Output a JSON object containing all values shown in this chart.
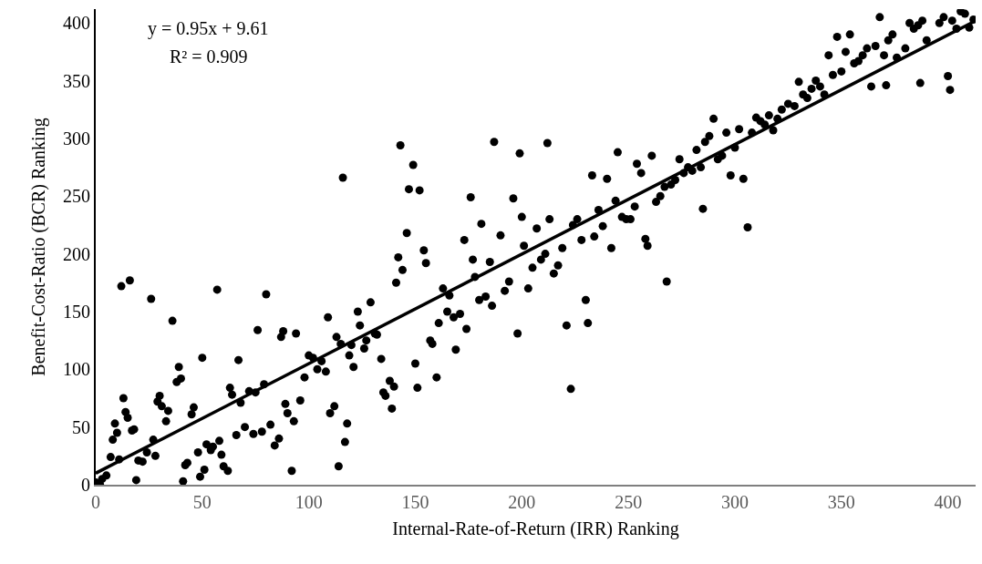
{
  "chart_data": {
    "type": "scatter",
    "xlabel": "Internal-Rate-of-Return (IRR) Ranking",
    "ylabel": "Benefit-Cost-Ratio (BCR) Ranking",
    "annotations": [
      "y = 0.95x + 9.61",
      "R² = 0.909"
    ],
    "xlim": [
      0,
      413
    ],
    "ylim": [
      0,
      412
    ],
    "xticks": [
      0,
      50,
      100,
      150,
      200,
      250,
      300,
      350,
      400
    ],
    "yticks": [
      0,
      50,
      100,
      150,
      200,
      250,
      300,
      350,
      400
    ],
    "grid": false,
    "marker": "circle",
    "series": [
      {
        "color": "#000000",
        "x": [
          0,
          2,
          3,
          5,
          7,
          8,
          9,
          10,
          11,
          12,
          13,
          14,
          15,
          16,
          17,
          18,
          19,
          20,
          22,
          24,
          26,
          27,
          28,
          29,
          30,
          31,
          33,
          34,
          36,
          38,
          39,
          40,
          41,
          42,
          43,
          45,
          46,
          48,
          49,
          50,
          51,
          52,
          54,
          55,
          57,
          58,
          59,
          60,
          62,
          63,
          64,
          66,
          67,
          68,
          70,
          72,
          74,
          75,
          76,
          78,
          79,
          80,
          82,
          84,
          86,
          87,
          88,
          89,
          90,
          92,
          93,
          94,
          96,
          98,
          100,
          102,
          104,
          106,
          108,
          109,
          110,
          112,
          113,
          114,
          115,
          116,
          117,
          118,
          119,
          120,
          121,
          123,
          124,
          126,
          127,
          129,
          131,
          132,
          134,
          135,
          136,
          138,
          139,
          140,
          141,
          142,
          143,
          144,
          146,
          147,
          149,
          150,
          151,
          152,
          154,
          155,
          157,
          158,
          160,
          161,
          163,
          165,
          166,
          168,
          169,
          171,
          173,
          174,
          176,
          177,
          178,
          180,
          181,
          183,
          185,
          186,
          187,
          190,
          192,
          194,
          196,
          198,
          199,
          200,
          201,
          203,
          205,
          207,
          209,
          211,
          212,
          213,
          215,
          217,
          219,
          221,
          223,
          224,
          226,
          228,
          230,
          231,
          233,
          234,
          236,
          238,
          240,
          242,
          244,
          245,
          247,
          249,
          251,
          253,
          254,
          256,
          258,
          259,
          261,
          263,
          265,
          267,
          268,
          270,
          272,
          274,
          276,
          278,
          280,
          282,
          284,
          285,
          286,
          288,
          290,
          292,
          294,
          296,
          298,
          300,
          302,
          304,
          306,
          308,
          310,
          312,
          314,
          316,
          318,
          320,
          322,
          325,
          328,
          330,
          332,
          334,
          336,
          338,
          340,
          342,
          344,
          346,
          348,
          350,
          352,
          354,
          356,
          358,
          360,
          362,
          364,
          366,
          368,
          370,
          371,
          372,
          374,
          376,
          380,
          382,
          384,
          386,
          387,
          388,
          390,
          396,
          398,
          400,
          401,
          402,
          404,
          406,
          408,
          410,
          412
        ],
        "values": [
          2,
          0,
          5,
          8,
          24,
          39,
          53,
          45,
          22,
          172,
          75,
          63,
          58,
          177,
          47,
          48,
          4,
          21,
          20,
          28,
          161,
          39,
          25,
          72,
          77,
          68,
          55,
          64,
          142,
          89,
          102,
          92,
          3,
          17,
          19,
          61,
          67,
          28,
          7,
          110,
          13,
          35,
          30,
          33,
          169,
          38,
          26,
          16,
          12,
          84,
          78,
          43,
          108,
          71,
          50,
          81,
          44,
          80,
          134,
          46,
          87,
          165,
          52,
          34,
          40,
          128,
          133,
          70,
          62,
          12,
          55,
          131,
          73,
          93,
          112,
          110,
          100,
          107,
          98,
          145,
          62,
          68,
          128,
          16,
          122,
          266,
          37,
          53,
          112,
          121,
          102,
          150,
          138,
          118,
          125,
          158,
          131,
          130,
          109,
          80,
          77,
          90,
          66,
          85,
          175,
          197,
          294,
          186,
          218,
          256,
          277,
          105,
          84,
          255,
          203,
          192,
          125,
          122,
          93,
          140,
          170,
          150,
          164,
          145,
          117,
          148,
          212,
          135,
          249,
          195,
          180,
          160,
          226,
          163,
          193,
          155,
          297,
          216,
          168,
          176,
          248,
          131,
          287,
          232,
          207,
          170,
          188,
          222,
          195,
          200,
          296,
          230,
          183,
          190,
          205,
          138,
          83,
          225,
          230,
          212,
          160,
          140,
          268,
          215,
          238,
          224,
          265,
          205,
          246,
          288,
          232,
          230,
          230,
          241,
          278,
          270,
          213,
          207,
          285,
          245,
          250,
          258,
          176,
          260,
          264,
          282,
          270,
          275,
          272,
          290,
          275,
          239,
          297,
          302,
          317,
          282,
          285,
          305,
          268,
          292,
          308,
          265,
          223,
          305,
          318,
          315,
          312,
          320,
          307,
          317,
          325,
          330,
          328,
          349,
          338,
          335,
          343,
          350,
          345,
          338,
          372,
          355,
          388,
          358,
          375,
          390,
          365,
          367,
          372,
          378,
          345,
          380,
          405,
          372,
          346,
          385,
          390,
          370,
          378,
          400,
          395,
          398,
          348,
          402,
          385,
          400,
          405,
          354,
          342,
          402,
          395,
          410,
          408,
          396,
          403
        ]
      },
      {
        "type": "line",
        "color": "#000000",
        "x": [
          0,
          412
        ],
        "values": [
          10,
          401
        ],
        "marker": "none"
      }
    ]
  }
}
